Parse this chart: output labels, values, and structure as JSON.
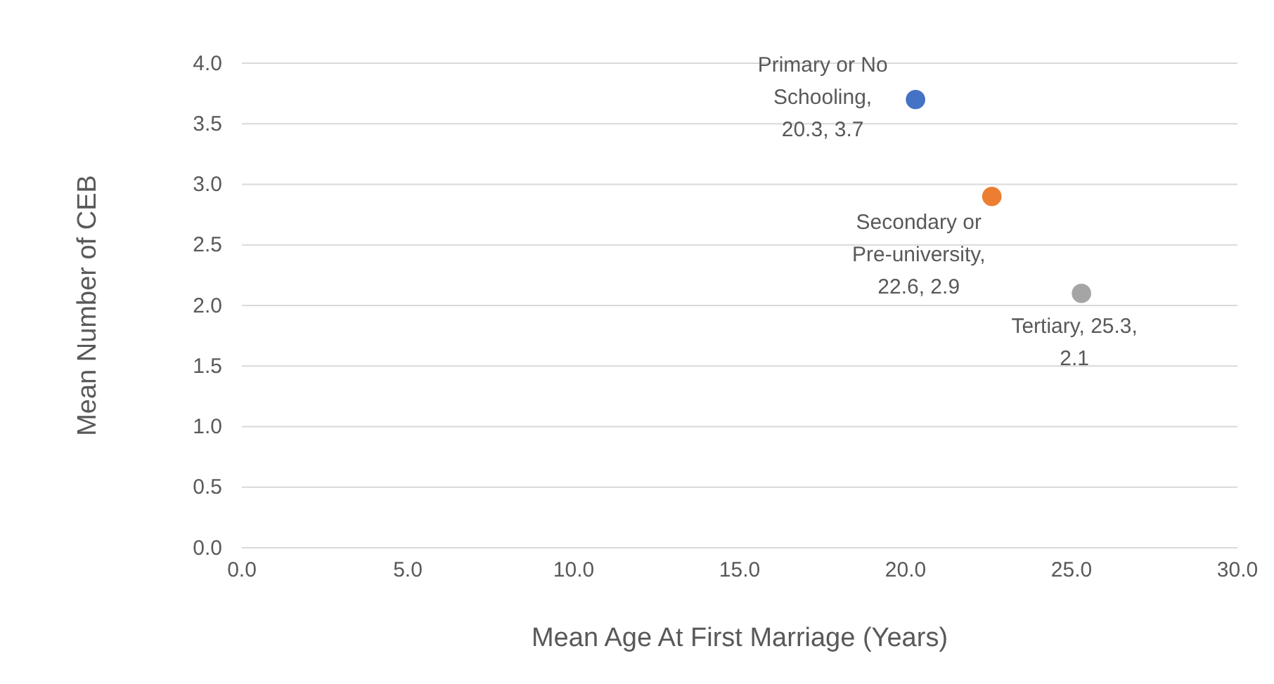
{
  "chart_data": {
    "type": "scatter",
    "xlabel": "Mean Age At First Marriage (Years)",
    "ylabel": "Mean Number of CEB",
    "series": [
      {
        "color": "#4472c4",
        "x": [
          20.3
        ],
        "values": [
          3.7
        ]
      },
      {
        "color": "#ed7d31",
        "x": [
          22.6
        ],
        "values": [
          2.9
        ]
      },
      {
        "color": "#a5a5a5",
        "x": [
          25.3
        ],
        "values": [
          2.1
        ]
      }
    ],
    "annotations": [
      {
        "text": "Primary or No Schooling, 20.3, 3.7",
        "x": 20.3,
        "y": 3.7
      },
      {
        "text": "Secondary or Pre-university, 22.6, 2.9",
        "x": 22.6,
        "y": 2.9
      },
      {
        "text": "Tertiary, 25.3, 2.1",
        "x": 25.3,
        "y": 2.1
      }
    ],
    "xlim": [
      0,
      30
    ],
    "ylim": [
      0,
      4
    ],
    "xticks": [
      {
        "value": 0,
        "label": "0.0"
      },
      {
        "value": 5,
        "label": "5.0"
      },
      {
        "value": 10,
        "label": "10.0"
      },
      {
        "value": 15,
        "label": "15.0"
      },
      {
        "value": 20,
        "label": "20.0"
      },
      {
        "value": 25,
        "label": "25.0"
      },
      {
        "value": 30,
        "label": "30.0"
      }
    ],
    "yticks": [
      {
        "value": 0,
        "label": "0.0"
      },
      {
        "value": 0.5,
        "label": "0.5"
      },
      {
        "value": 1,
        "label": "1.0"
      },
      {
        "value": 1.5,
        "label": "1.5"
      },
      {
        "value": 2,
        "label": "2.0"
      },
      {
        "value": 2.5,
        "label": "2.5"
      },
      {
        "value": 3,
        "label": "3.0"
      },
      {
        "value": 3.5,
        "label": "3.5"
      },
      {
        "value": 4,
        "label": "4.0"
      }
    ],
    "grid": "y",
    "marker": "circle"
  }
}
